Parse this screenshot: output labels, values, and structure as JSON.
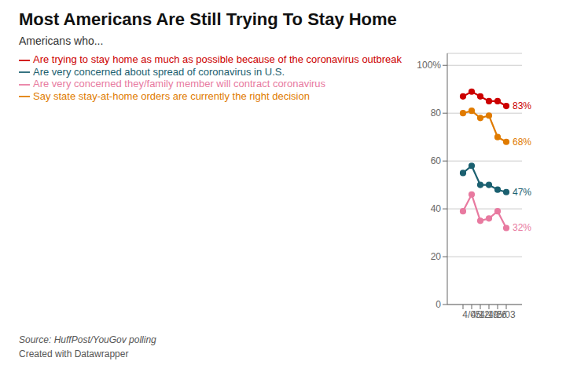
{
  "chart_data": {
    "type": "line",
    "title": "Most Americans Are Still Trying To Stay Home",
    "subtitle": "Americans who...",
    "categories": [
      null,
      "4/05",
      "4/12",
      "4/19",
      "4/26",
      "5/03"
    ],
    "series": [
      {
        "name": "Are trying to stay home as much as possible because of the coronavirus outbreak",
        "color": "#cc0000",
        "values": [
          87,
          89,
          87,
          85,
          85,
          83
        ],
        "value_labels": [
          null,
          null,
          null,
          null,
          null,
          "83%"
        ]
      },
      {
        "name": "Say state stay-at-home orders are currently the right decision",
        "color": "#e07b00",
        "values": [
          80,
          81,
          78,
          79,
          70,
          68
        ],
        "value_labels": [
          null,
          null,
          null,
          null,
          null,
          "68%"
        ]
      },
      {
        "name": "Are very concerned about spread of coronavirus in U.S.",
        "color": "#1b6070",
        "values": [
          55,
          58,
          50,
          50,
          48,
          47
        ],
        "value_labels": [
          null,
          null,
          null,
          null,
          null,
          "47%"
        ]
      },
      {
        "name": "Are very concerned they/family member will contract coronavirus",
        "color": "#e87aa0",
        "values": [
          39,
          46,
          35,
          36,
          39,
          32
        ],
        "value_labels": [
          null,
          null,
          null,
          null,
          null,
          "32%"
        ]
      }
    ],
    "ylim": [
      0,
      105
    ],
    "yticks": [
      0,
      20,
      40,
      60,
      80,
      {
        "value": 100,
        "label": "100%"
      }
    ],
    "grid": true,
    "legend": "top-left",
    "marker": "circle",
    "annotations": [
      "Source: HuffPost/YouGov polling",
      "Created with Datawrapper"
    ]
  }
}
